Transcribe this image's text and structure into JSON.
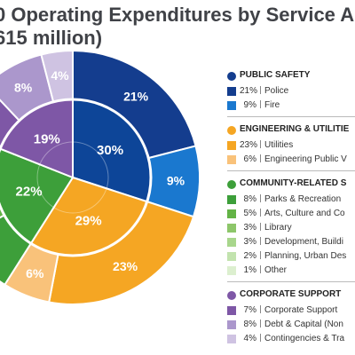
{
  "title_lines": [
    "0 Operating Expenditures by Service A",
    "615 million)"
  ],
  "colors": {
    "public_safety": "#143d8e",
    "engineering": "#f5a623",
    "community": "#3d9f3a",
    "corporate": "#7e57a6"
  },
  "chart_data": {
    "type": "pie",
    "title": "0 Operating Expenditures by Service A 615 million)",
    "inner_ring": [
      {
        "group": "public_safety",
        "value": 30,
        "label": "30%",
        "color": "#0d4598"
      },
      {
        "group": "engineering",
        "value": 29,
        "label": "29%",
        "color": "#f5a623"
      },
      {
        "group": "community",
        "value": 22,
        "label": "22%",
        "color": "#3d9f3a"
      },
      {
        "group": "corporate",
        "value": 19,
        "label": "19%",
        "color": "#7e57a6"
      }
    ],
    "outer_ring": [
      {
        "name": "Police",
        "value": 21,
        "label": "21%",
        "color": "#143d8e"
      },
      {
        "name": "Fire",
        "value": 9,
        "label": "9%",
        "color": "#1a78cf"
      },
      {
        "name": "Utilities",
        "value": 23,
        "label": "23%",
        "color": "#f5a623"
      },
      {
        "name": "Engineering Public V",
        "value": 6,
        "label": "6%",
        "color": "#f9c27a"
      },
      {
        "name": "Parks & Recreation",
        "value": 8,
        "label": "",
        "color": "#3d9f3a"
      },
      {
        "name": "Arts, Culture and Co",
        "value": 5,
        "label": "",
        "color": "#63b346"
      },
      {
        "name": "Library",
        "value": 3,
        "label": "",
        "color": "#8dc66a"
      },
      {
        "name": "Development, Buildi",
        "value": 3,
        "label": "",
        "color": "#a8d68c"
      },
      {
        "name": "Planning, Urban Des",
        "value": 2,
        "label": "",
        "color": "#c2e3ae"
      },
      {
        "name": "Other",
        "value": 1,
        "label": "",
        "color": "#dcefcf"
      },
      {
        "name": "Corporate Support",
        "value": 7,
        "label": "",
        "color": "#7e57a6"
      },
      {
        "name": "Debt & Capital (Non",
        "value": 8,
        "label": "8%",
        "color": "#ab97cc"
      },
      {
        "name": "Contingencies & Tra",
        "value": 4,
        "label": "4%",
        "color": "#cfc3e2"
      }
    ]
  },
  "legend": [
    {
      "label": "PUBLIC SAFETY",
      "color": "#143d8e",
      "items": [
        {
          "pct": "21%",
          "name": "Police",
          "color": "#143d8e"
        },
        {
          "pct": "9%",
          "name": "Fire",
          "color": "#1a78cf"
        }
      ]
    },
    {
      "label": "ENGINEERING & UTILITIE",
      "color": "#f5a623",
      "items": [
        {
          "pct": "23%",
          "name": "Utilities",
          "color": "#f5a623"
        },
        {
          "pct": "6%",
          "name": "Engineering Public V",
          "color": "#f9c27a"
        }
      ]
    },
    {
      "label": "COMMUNITY-RELATED S",
      "color": "#3d9f3a",
      "items": [
        {
          "pct": "8%",
          "name": "Parks & Recreation",
          "color": "#3d9f3a"
        },
        {
          "pct": "5%",
          "name": "Arts, Culture and Co",
          "color": "#63b346"
        },
        {
          "pct": "3%",
          "name": "Library",
          "color": "#8dc66a"
        },
        {
          "pct": "3%",
          "name": "Development, Buildi",
          "color": "#a8d68c"
        },
        {
          "pct": "2%",
          "name": "Planning, Urban Des",
          "color": "#c2e3ae"
        },
        {
          "pct": "1%",
          "name": "Other",
          "color": "#dcefcf"
        }
      ]
    },
    {
      "label": "CORPORATE SUPPORT",
      "color": "#7e57a6",
      "items": [
        {
          "pct": "7%",
          "name": "Corporate Support",
          "color": "#7e57a6"
        },
        {
          "pct": "8%",
          "name": "Debt & Capital (Non",
          "color": "#ab97cc"
        },
        {
          "pct": "4%",
          "name": "Contingencies & Tra",
          "color": "#cfc3e2"
        }
      ]
    }
  ]
}
